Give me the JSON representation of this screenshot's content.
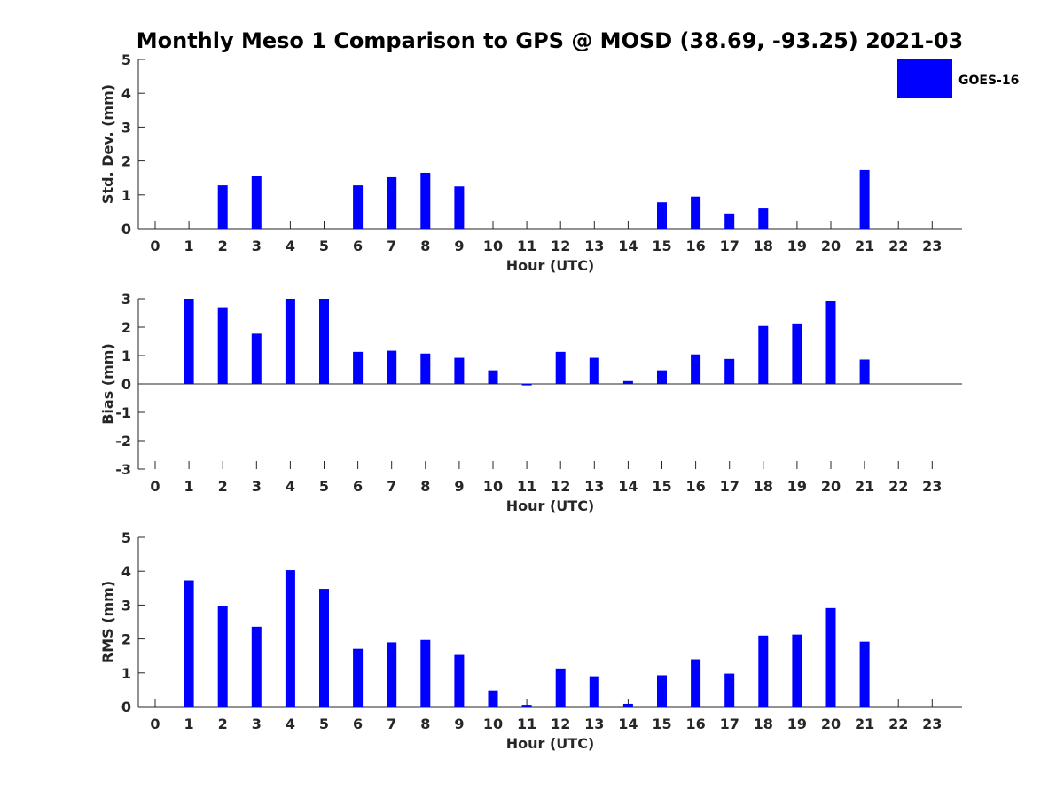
{
  "title": "Monthly Meso 1 Comparison to GPS @ MOSD (38.69, -93.25) 2021-03",
  "legend": {
    "label": "GOES-16",
    "color": "#0000ff"
  },
  "bar_color": "#0000ff",
  "chart_data": [
    {
      "type": "bar",
      "name": "std-dev",
      "xlabel": "Hour (UTC)",
      "ylabel": "Std. Dev. (mm)",
      "ylim": [
        0,
        5
      ],
      "yticks": [
        0,
        1,
        2,
        3,
        4,
        5
      ],
      "categories": [
        "0",
        "1",
        "2",
        "3",
        "4",
        "5",
        "6",
        "7",
        "8",
        "9",
        "10",
        "11",
        "12",
        "13",
        "14",
        "15",
        "16",
        "17",
        "18",
        "19",
        "20",
        "21",
        "22",
        "23"
      ],
      "series": [
        {
          "name": "GOES-16",
          "values": [
            null,
            null,
            1.28,
            1.57,
            null,
            null,
            1.28,
            1.52,
            1.65,
            1.25,
            null,
            null,
            null,
            null,
            null,
            0.78,
            0.95,
            0.45,
            0.6,
            null,
            null,
            1.73,
            null,
            null
          ]
        }
      ]
    },
    {
      "type": "bar",
      "name": "bias",
      "xlabel": "Hour (UTC)",
      "ylabel": "Bias (mm)",
      "ylim": [
        -3,
        3
      ],
      "yticks": [
        -3,
        -2,
        -1,
        0,
        1,
        2,
        3
      ],
      "categories": [
        "0",
        "1",
        "2",
        "3",
        "4",
        "5",
        "6",
        "7",
        "8",
        "9",
        "10",
        "11",
        "12",
        "13",
        "14",
        "15",
        "16",
        "17",
        "18",
        "19",
        "20",
        "21",
        "22",
        "23"
      ],
      "series": [
        {
          "name": "GOES-16",
          "values": [
            null,
            3.0,
            2.7,
            1.77,
            3.0,
            3.0,
            1.13,
            1.17,
            1.07,
            0.92,
            0.48,
            -0.05,
            1.13,
            0.92,
            0.1,
            0.48,
            1.04,
            0.88,
            2.04,
            2.13,
            2.92,
            0.86,
            null,
            null
          ]
        }
      ]
    },
    {
      "type": "bar",
      "name": "rms",
      "xlabel": "Hour (UTC)",
      "ylabel": "RMS (mm)",
      "ylim": [
        0,
        5
      ],
      "yticks": [
        0,
        1,
        2,
        3,
        4,
        5
      ],
      "categories": [
        "0",
        "1",
        "2",
        "3",
        "4",
        "5",
        "6",
        "7",
        "8",
        "9",
        "10",
        "11",
        "12",
        "13",
        "14",
        "15",
        "16",
        "17",
        "18",
        "19",
        "20",
        "21",
        "22",
        "23"
      ],
      "series": [
        {
          "name": "GOES-16",
          "values": [
            null,
            3.73,
            2.98,
            2.36,
            4.03,
            3.48,
            1.71,
            1.9,
            1.97,
            1.53,
            0.48,
            0.05,
            1.13,
            0.9,
            0.08,
            0.93,
            1.4,
            0.98,
            2.1,
            2.13,
            2.91,
            1.92,
            null,
            null
          ]
        }
      ]
    }
  ]
}
